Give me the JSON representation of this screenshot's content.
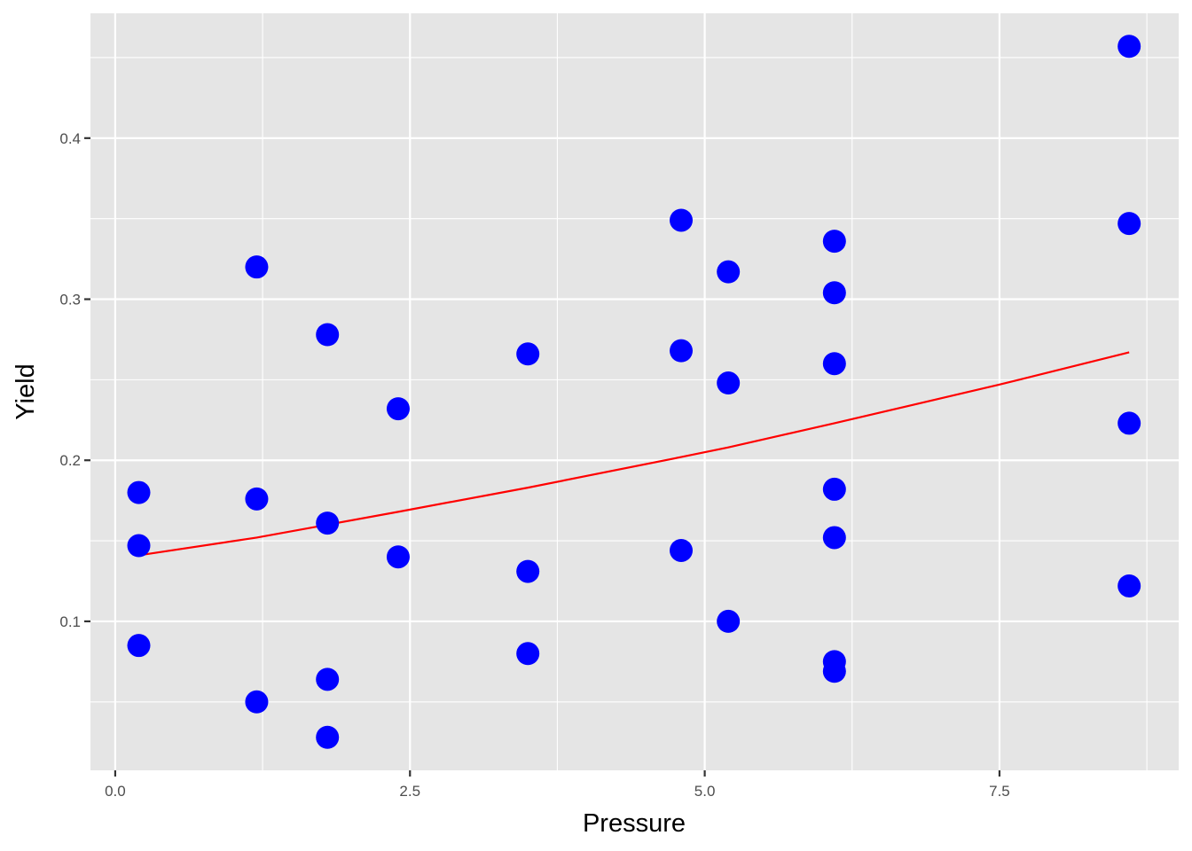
{
  "chart_data": {
    "type": "scatter",
    "title": "",
    "xlabel": "Pressure",
    "ylabel": "Yield",
    "xlim": [
      -0.21,
      9.02
    ],
    "ylim": [
      0.0075,
      0.4775
    ],
    "x_ticks": [
      0.0,
      2.5,
      5.0,
      7.5
    ],
    "x_tick_labels": [
      "0.0",
      "2.5",
      "5.0",
      "7.5"
    ],
    "x_minor_ticks": [
      1.25,
      3.75,
      6.25,
      8.75
    ],
    "y_ticks": [
      0.1,
      0.2,
      0.3,
      0.4
    ],
    "y_tick_labels": [
      "0.1",
      "0.2",
      "0.3",
      "0.4"
    ],
    "y_minor_ticks": [
      0.05,
      0.15,
      0.25,
      0.35,
      0.45
    ],
    "grid": true,
    "legend": null,
    "colors": {
      "panel_background": "#e5e5e5",
      "grid": "#ffffff",
      "points": "#0000ff",
      "fit_line": "#ff0000",
      "tick_label": "#4d4d4d",
      "tick_mark": "#333333",
      "axis_title": "#000000"
    },
    "series": [
      {
        "name": "observations",
        "type": "scatter",
        "color": "#0000ff",
        "points": [
          {
            "x": 0.2,
            "y": 0.18
          },
          {
            "x": 0.2,
            "y": 0.147
          },
          {
            "x": 0.2,
            "y": 0.085
          },
          {
            "x": 1.2,
            "y": 0.32
          },
          {
            "x": 1.2,
            "y": 0.176
          },
          {
            "x": 1.2,
            "y": 0.05
          },
          {
            "x": 1.8,
            "y": 0.278
          },
          {
            "x": 1.8,
            "y": 0.161
          },
          {
            "x": 1.8,
            "y": 0.064
          },
          {
            "x": 1.8,
            "y": 0.028
          },
          {
            "x": 2.4,
            "y": 0.232
          },
          {
            "x": 2.4,
            "y": 0.14
          },
          {
            "x": 3.5,
            "y": 0.266
          },
          {
            "x": 3.5,
            "y": 0.131
          },
          {
            "x": 3.5,
            "y": 0.08
          },
          {
            "x": 4.8,
            "y": 0.349
          },
          {
            "x": 4.8,
            "y": 0.268
          },
          {
            "x": 4.8,
            "y": 0.144
          },
          {
            "x": 5.2,
            "y": 0.317
          },
          {
            "x": 5.2,
            "y": 0.248
          },
          {
            "x": 5.2,
            "y": 0.1
          },
          {
            "x": 6.1,
            "y": 0.336
          },
          {
            "x": 6.1,
            "y": 0.304
          },
          {
            "x": 6.1,
            "y": 0.26
          },
          {
            "x": 6.1,
            "y": 0.182
          },
          {
            "x": 6.1,
            "y": 0.152
          },
          {
            "x": 6.1,
            "y": 0.075
          },
          {
            "x": 6.1,
            "y": 0.069
          },
          {
            "x": 8.6,
            "y": 0.457
          },
          {
            "x": 8.6,
            "y": 0.347
          },
          {
            "x": 8.6,
            "y": 0.223
          },
          {
            "x": 8.6,
            "y": 0.122
          }
        ]
      },
      {
        "name": "fitted curve",
        "type": "line",
        "color": "#ff0000",
        "points": [
          {
            "x": 0.2,
            "y": 0.141
          },
          {
            "x": 1.2,
            "y": 0.152
          },
          {
            "x": 1.8,
            "y": 0.16
          },
          {
            "x": 2.4,
            "y": 0.168
          },
          {
            "x": 3.5,
            "y": 0.183
          },
          {
            "x": 4.8,
            "y": 0.202
          },
          {
            "x": 5.2,
            "y": 0.208
          },
          {
            "x": 6.1,
            "y": 0.223
          },
          {
            "x": 7.5,
            "y": 0.247
          },
          {
            "x": 8.6,
            "y": 0.267
          }
        ]
      }
    ]
  }
}
